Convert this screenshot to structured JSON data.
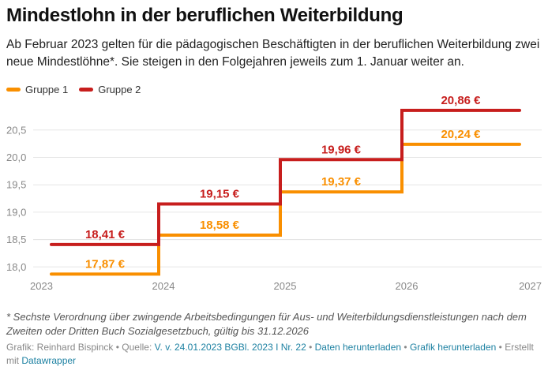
{
  "header": {
    "title": "Mindestlohn in der beruflichen Weiterbildung",
    "subtitle": "Ab Februar 2023 gelten für die pädagogischen Beschäftigten in der beruflichen Weiterbildung zwei neue Mindestlöhne*. Sie steigen in den Folgejahren jeweils zum 1. Januar weiter an."
  },
  "chart_data": {
    "type": "line",
    "subtype": "step",
    "title": "Mindestlohn in der beruflichen Weiterbildung",
    "xlabel": "",
    "ylabel": "",
    "x_ticks": [
      "2023",
      "2024",
      "2025",
      "2026",
      "2027"
    ],
    "xlim": [
      2023,
      2027
    ],
    "y_ticks": [
      "18,0",
      "18,5",
      "19,0",
      "19,5",
      "20,0",
      "20,5"
    ],
    "y_tick_values": [
      18.0,
      18.5,
      19.0,
      19.5,
      20.0,
      20.5
    ],
    "ylim": [
      17.87,
      20.86
    ],
    "grid": true,
    "legend_position": "top-left",
    "unit": "€",
    "series": [
      {
        "name": "Gruppe 1",
        "color": "#f98f00",
        "steps": [
          {
            "start": "2023-02",
            "end": "2024-01",
            "value": 17.87,
            "label": "17,87 €"
          },
          {
            "start": "2024-01",
            "end": "2025-01",
            "value": 18.58,
            "label": "18,58 €"
          },
          {
            "start": "2025-01",
            "end": "2026-01",
            "value": 19.37,
            "label": "19,37 €"
          },
          {
            "start": "2026-01",
            "end": "2026-12",
            "value": 20.24,
            "label": "20,24 €"
          }
        ]
      },
      {
        "name": "Gruppe 2",
        "color": "#c71e1d",
        "steps": [
          {
            "start": "2023-02",
            "end": "2024-01",
            "value": 18.41,
            "label": "18,41 €"
          },
          {
            "start": "2024-01",
            "end": "2025-01",
            "value": 19.15,
            "label": "19,15 €"
          },
          {
            "start": "2025-01",
            "end": "2026-01",
            "value": 19.96,
            "label": "19,96 €"
          },
          {
            "start": "2026-01",
            "end": "2026-12",
            "value": 20.86,
            "label": "20,86 €"
          }
        ]
      }
    ]
  },
  "footer": {
    "note": "* Sechste Verordnung über zwingende Arbeitsbedingungen für Aus- und Weiterbildungsdienstleistungen nach dem Zweiten oder Dritten Buch Sozialgesetzbuch, gültig bis 31.12.2026",
    "grafik_label": "Grafik: Reinhard Bispinck",
    "sep": " • ",
    "quelle_label": "Quelle: ",
    "quelle_link": "V. v. 24.01.2023 BGBl. 2023 I Nr. 22",
    "download_data": "Daten herunterladen",
    "download_graphic": "Grafik herunterladen",
    "created_with": "Erstellt mit ",
    "datawrapper": "Datawrapper"
  }
}
